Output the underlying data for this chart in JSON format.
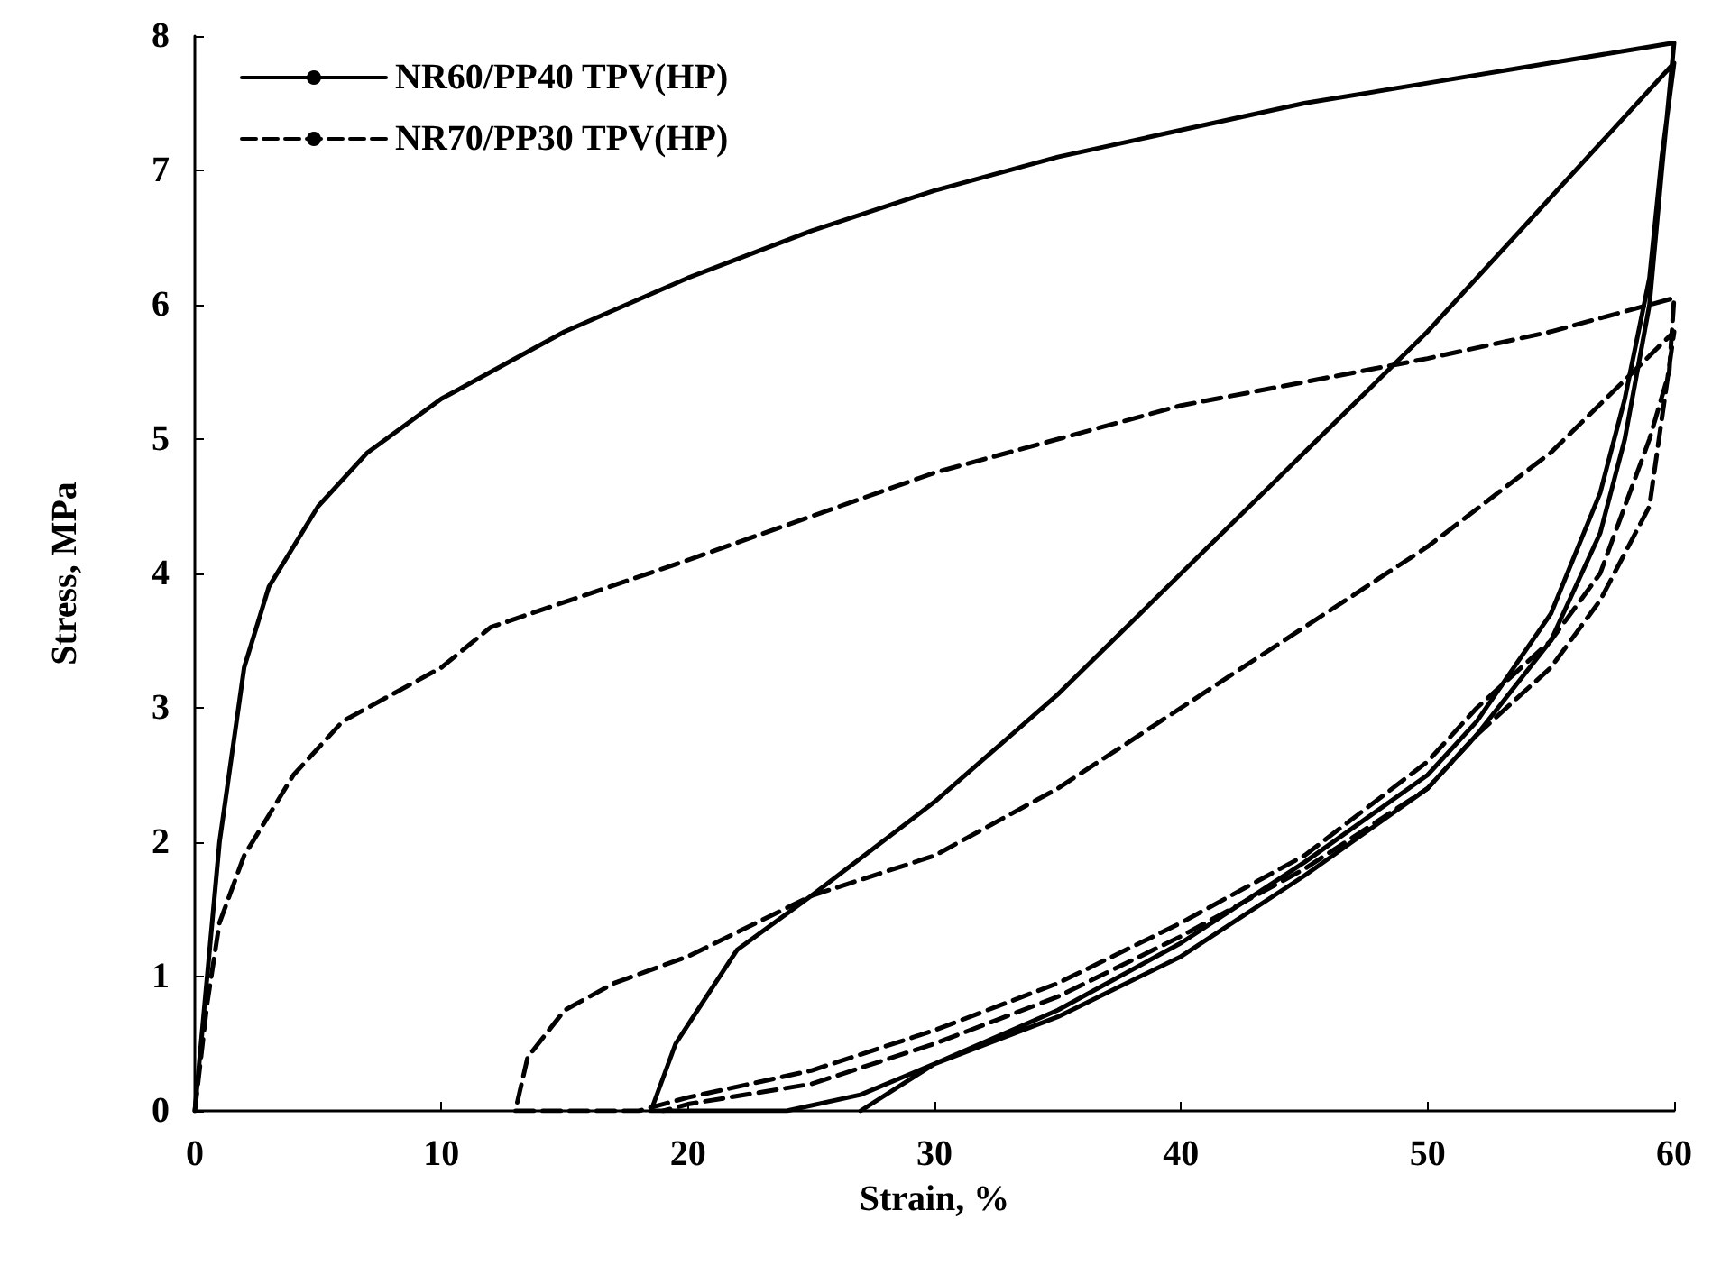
{
  "chart_data": {
    "type": "line",
    "xlabel": "Strain, %",
    "ylabel": "Stress, MPa",
    "xlim": [
      0,
      60
    ],
    "xticks": [
      0,
      10,
      20,
      30,
      40,
      50,
      60
    ],
    "ylim": [
      0,
      8
    ],
    "yticks": [
      0,
      1,
      2,
      3,
      4,
      5,
      6,
      7,
      8
    ],
    "grid": false,
    "legend": "top left",
    "marker": "none",
    "series": [
      {
        "name": "NR60/PP40 TPV(HP)",
        "color": "#000000",
        "line_style": "solid",
        "x": [
          0,
          0.5,
          1,
          2,
          3,
          5,
          7,
          10,
          15,
          20,
          25,
          30,
          35,
          40,
          45,
          50,
          55,
          60,
          59.5,
          59,
          58,
          57,
          55,
          52,
          50,
          45,
          40,
          35,
          30,
          27,
          24,
          18.5,
          19.5,
          22,
          25,
          30,
          35,
          40,
          45,
          50,
          55,
          60,
          59.5,
          59,
          58,
          57,
          55,
          52,
          50,
          45,
          40,
          35,
          30,
          27
        ],
        "values": [
          0,
          1,
          2,
          3.3,
          3.9,
          4.5,
          4.9,
          5.3,
          5.8,
          6.2,
          6.55,
          6.85,
          7.1,
          7.3,
          7.5,
          7.65,
          7.8,
          7.95,
          7,
          6,
          5,
          4.3,
          3.5,
          2.8,
          2.4,
          1.75,
          1.15,
          0.7,
          0.35,
          0.12,
          0,
          0,
          0.5,
          1.2,
          1.6,
          2.3,
          3.1,
          4,
          4.9,
          5.8,
          6.8,
          7.8,
          7.1,
          6.2,
          5.3,
          4.6,
          3.7,
          2.9,
          2.5,
          1.85,
          1.25,
          0.75,
          0.35,
          0
        ]
      },
      {
        "name": "NR70/PP30 TPV(HP)",
        "color": "#000000",
        "line_style": "dashed",
        "x": [
          0,
          0.5,
          1,
          2,
          4,
          6,
          10,
          12,
          20,
          30,
          40,
          50,
          55,
          58,
          60,
          59.8,
          59,
          57,
          55,
          52,
          50,
          45,
          40,
          35,
          30,
          25,
          20,
          18,
          13,
          13.5,
          15,
          17,
          20,
          25,
          30,
          35,
          40,
          45,
          50,
          55,
          60,
          59,
          57,
          55,
          52,
          50,
          45,
          40,
          35,
          30,
          25,
          20,
          19
        ],
        "values": [
          0,
          0.8,
          1.4,
          1.9,
          2.5,
          2.9,
          3.3,
          3.6,
          4.1,
          4.75,
          5.25,
          5.6,
          5.8,
          5.95,
          6.05,
          5.5,
          5,
          4,
          3.5,
          3,
          2.6,
          1.9,
          1.4,
          0.95,
          0.6,
          0.3,
          0.1,
          0,
          0,
          0.4,
          0.75,
          0.95,
          1.15,
          1.6,
          1.9,
          2.4,
          3,
          3.6,
          4.2,
          4.9,
          5.8,
          4.5,
          3.8,
          3.3,
          2.8,
          2.4,
          1.8,
          1.3,
          0.85,
          0.5,
          0.2,
          0.05,
          0
        ]
      }
    ]
  }
}
